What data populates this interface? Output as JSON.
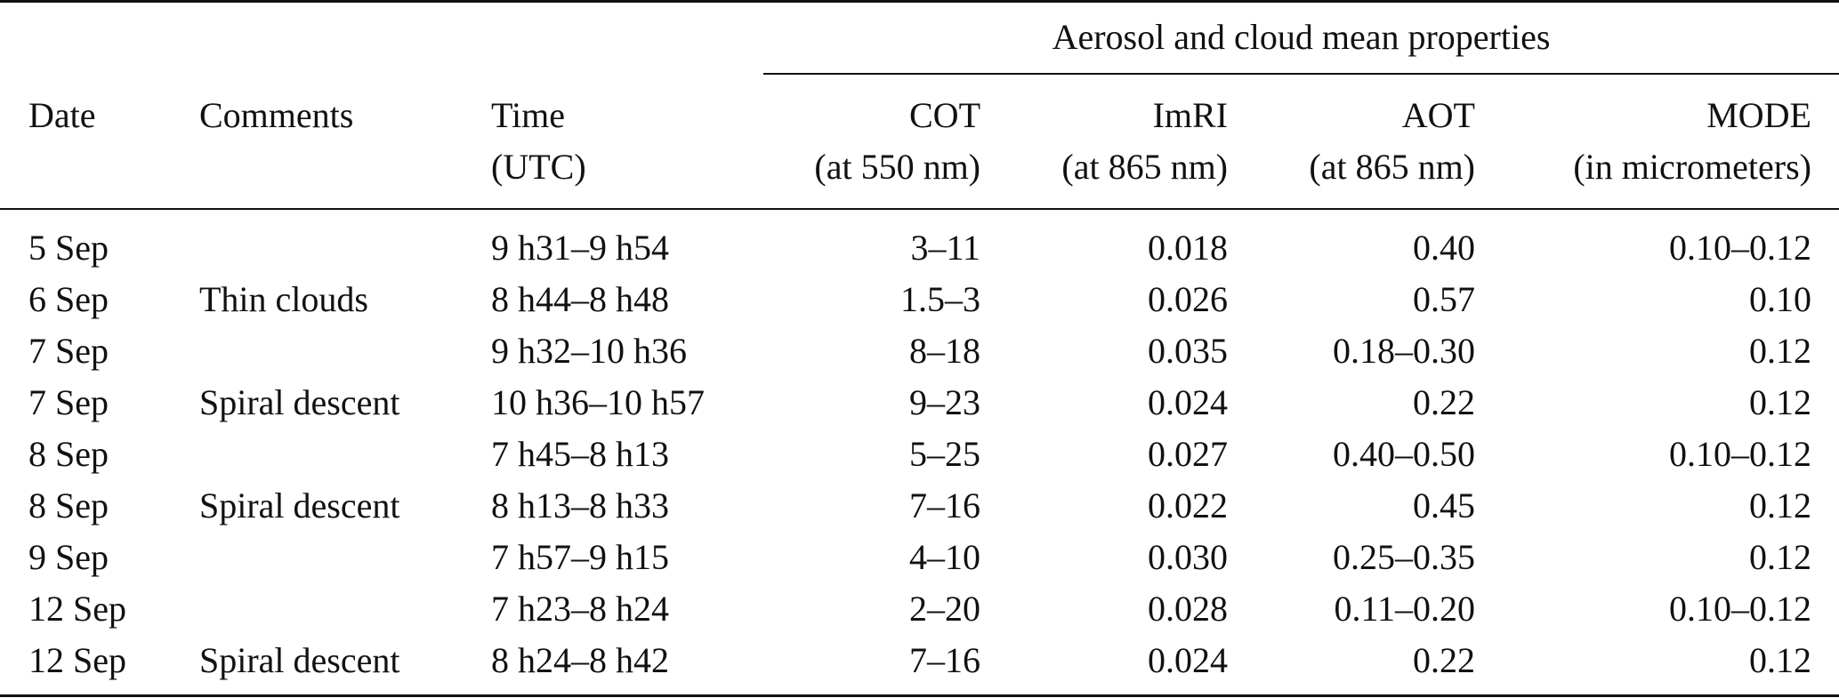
{
  "table": {
    "group_header": "Aerosol and cloud mean properties",
    "columns": [
      {
        "line1": "Date",
        "line2": ""
      },
      {
        "line1": "Comments",
        "line2": ""
      },
      {
        "line1": "Time",
        "line2": "(UTC)"
      },
      {
        "line1": "COT",
        "line2": "(at 550 nm)"
      },
      {
        "line1": "ImRI",
        "line2": "(at 865 nm)"
      },
      {
        "line1": "AOT",
        "line2": "(at 865 nm)"
      },
      {
        "line1": "MODE",
        "line2": "(in micrometers)"
      }
    ],
    "rows": [
      [
        "5 Sep",
        "",
        "9 h31–9 h54",
        "3–11",
        "0.018",
        "0.40",
        "0.10–0.12"
      ],
      [
        "6 Sep",
        "Thin clouds",
        "8 h44–8 h48",
        "1.5–3",
        "0.026",
        "0.57",
        "0.10"
      ],
      [
        "7 Sep",
        "",
        "9 h32–10 h36",
        "8–18",
        "0.035",
        "0.18–0.30",
        "0.12"
      ],
      [
        "7 Sep",
        "Spiral descent",
        "10 h36–10 h57",
        "9–23",
        "0.024",
        "0.22",
        "0.12"
      ],
      [
        "8 Sep",
        "",
        "7 h45–8 h13",
        "5–25",
        "0.027",
        "0.40–0.50",
        "0.10–0.12"
      ],
      [
        "8 Sep",
        "Spiral descent",
        "8 h13–8 h33",
        "7–16",
        "0.022",
        "0.45",
        "0.12"
      ],
      [
        "9 Sep",
        "",
        "7 h57–9 h15",
        "4–10",
        "0.030",
        "0.25–0.35",
        "0.12"
      ],
      [
        "12 Sep",
        "",
        "7 h23–8 h24",
        "2–20",
        "0.028",
        "0.11–0.20",
        "0.10–0.12"
      ],
      [
        "12 Sep",
        "Spiral descent",
        "8 h24–8 h42",
        "7–16",
        "0.024",
        "0.22",
        "0.12"
      ]
    ]
  }
}
